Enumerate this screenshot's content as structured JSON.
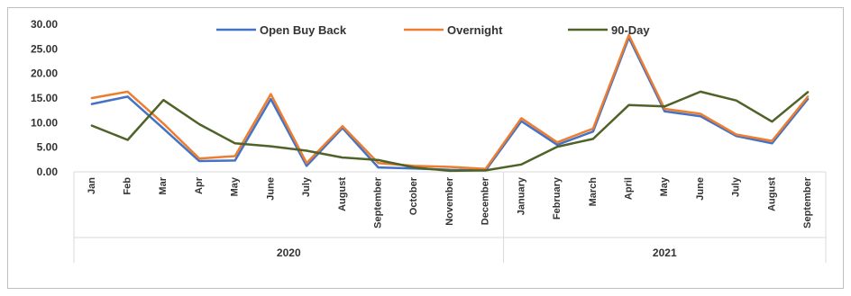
{
  "chart_data": {
    "type": "line",
    "title": "",
    "xlabel": "",
    "ylabel": "",
    "ylim": [
      0,
      30
    ],
    "y_ticks": [
      "30.00",
      "25.00",
      "20.00",
      "15.00",
      "10.00",
      "5.00",
      "0.00"
    ],
    "y_tick_values": [
      30,
      25,
      20,
      15,
      10,
      5,
      0
    ],
    "grid": false,
    "legend_position": "top",
    "categories": [
      "Jan",
      "Feb",
      "Mar",
      "Apr",
      "May",
      "June",
      "July",
      "August",
      "September",
      "October",
      "November",
      "December",
      "January",
      "February",
      "March",
      "April",
      "May",
      "June",
      "July",
      "August",
      "September"
    ],
    "groups": [
      {
        "label": "2020",
        "start": 0,
        "end": 11
      },
      {
        "label": "2021",
        "start": 12,
        "end": 20
      }
    ],
    "series": [
      {
        "name": "Open Buy Back",
        "color": "#4472c4",
        "values": [
          13.8,
          15.3,
          8.8,
          2.2,
          2.3,
          14.8,
          1.2,
          8.9,
          0.9,
          0.7,
          0.4,
          0.3,
          10.3,
          5.5,
          8.2,
          27.3,
          12.3,
          11.3,
          7.3,
          5.8,
          14.8
        ]
      },
      {
        "name": "Overnight",
        "color": "#ed7d31",
        "values": [
          15.0,
          16.3,
          9.8,
          2.7,
          3.2,
          15.8,
          1.8,
          9.3,
          1.8,
          1.2,
          1.0,
          0.6,
          10.9,
          6.0,
          8.8,
          27.8,
          12.8,
          11.8,
          7.6,
          6.3,
          15.3
        ]
      },
      {
        "name": "90-Day",
        "color": "#4f6228",
        "values": [
          9.4,
          6.5,
          14.6,
          9.7,
          5.8,
          5.2,
          4.3,
          2.9,
          2.4,
          0.9,
          0.2,
          0.3,
          1.5,
          5.1,
          6.7,
          13.6,
          13.3,
          16.3,
          14.5,
          10.2,
          16.2
        ]
      }
    ]
  }
}
